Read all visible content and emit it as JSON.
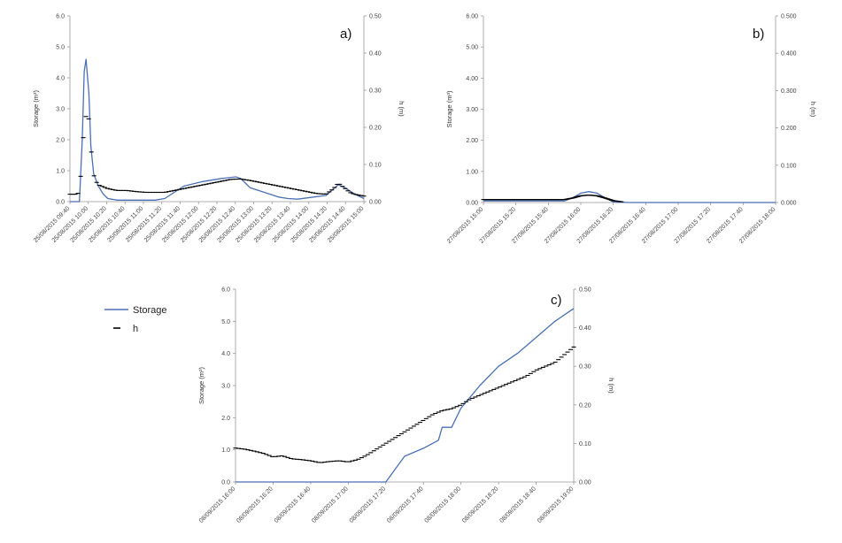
{
  "colors": {
    "storage": "#4a6fb5",
    "h": "#000000",
    "axis": "#999999"
  },
  "legend": {
    "storage_label": "Storage",
    "h_label": "h"
  },
  "chart_data": [
    {
      "type": "line",
      "panel_label": "a)",
      "ylabel": "Storage (m³)",
      "y2label": "h (m)",
      "ylim": [
        0,
        6
      ],
      "y2lim": [
        0,
        0.5
      ],
      "yticks": [
        "0.0",
        "1.0",
        "2.0",
        "3.0",
        "4.0",
        "5.0",
        "6.0"
      ],
      "y2ticks": [
        "0.00",
        "0.10",
        "0.20",
        "0.30",
        "0.40",
        "0.50"
      ],
      "xticks": [
        "25/08/2015 09:40",
        "25/08/2015 10:00",
        "25/08/2015 10:20",
        "25/08/2015 10:40",
        "25/08/2015 11:00",
        "25/08/2015 11:20",
        "25/08/2015 11:40",
        "25/08/2015 12:00",
        "25/08/2015 12:20",
        "25/08/2015 12:40",
        "25/08/2015 13:00",
        "25/08/2015 13:20",
        "25/08/2015 13:40",
        "25/08/2015 14:00",
        "25/08/2015 14:20",
        "25/08/2015 14:40",
        "25/08/2015 15:00"
      ],
      "x_minutes": [
        0,
        10,
        13,
        15,
        17,
        20,
        22,
        25,
        30,
        35,
        40,
        50,
        60,
        70,
        80,
        90,
        100,
        110,
        120,
        140,
        160,
        175,
        180,
        185,
        190,
        200,
        210,
        220,
        230,
        240,
        270,
        283,
        290,
        300,
        310
      ],
      "storage": [
        0,
        0,
        2.0,
        4.2,
        4.6,
        3.5,
        1.8,
        0.9,
        0.5,
        0.25,
        0.1,
        0.05,
        0.05,
        0.05,
        0.05,
        0.05,
        0.1,
        0.3,
        0.5,
        0.65,
        0.75,
        0.8,
        0.75,
        0.6,
        0.45,
        0.35,
        0.25,
        0.15,
        0.1,
        0.08,
        0.2,
        0.55,
        0.45,
        0.25,
        0.1
      ],
      "h_x_minutes": [
        0,
        8,
        10,
        12,
        14,
        16,
        18,
        20,
        22,
        24,
        26,
        30,
        35,
        40,
        50,
        60,
        70,
        80,
        90,
        100,
        110,
        120,
        130,
        140,
        150,
        160,
        170,
        180,
        190,
        200,
        210,
        220,
        230,
        240,
        250,
        260,
        270,
        278,
        283,
        288,
        295,
        300,
        310
      ],
      "h": [
        0.02,
        0.02,
        0.03,
        0.09,
        0.17,
        0.22,
        0.24,
        0.22,
        0.15,
        0.09,
        0.06,
        0.045,
        0.04,
        0.035,
        0.03,
        0.03,
        0.027,
        0.025,
        0.025,
        0.025,
        0.03,
        0.035,
        0.04,
        0.045,
        0.05,
        0.055,
        0.06,
        0.061,
        0.057,
        0.052,
        0.047,
        0.042,
        0.037,
        0.032,
        0.027,
        0.022,
        0.02,
        0.035,
        0.05,
        0.04,
        0.025,
        0.02,
        0.015
      ]
    },
    {
      "type": "line",
      "panel_label": "b)",
      "ylabel": "Storage (m³)",
      "y2label": "h (m)",
      "ylim": [
        0,
        6
      ],
      "y2lim": [
        0,
        0.5
      ],
      "yticks": [
        "0.00",
        "1.00",
        "2.00",
        "3.00",
        "4.00",
        "5.00",
        "6.00"
      ],
      "y2ticks": [
        "0.000",
        "0.100",
        "0.200",
        "0.300",
        "0.400",
        "0.500"
      ],
      "xticks": [
        "27/08/2015 15:00",
        "27/08/2015 15:20",
        "27/08/2015 15:40",
        "27/08/2015 16:00",
        "27/08/2015 16:20",
        "27/08/2015 16:40",
        "27/08/2015 17:00",
        "27/08/2015 17:20",
        "27/08/2015 17:40",
        "27/08/2015 18:00"
      ],
      "x_minutes": [
        0,
        10,
        20,
        30,
        40,
        50,
        55,
        60,
        65,
        70,
        75,
        80,
        90,
        120,
        180
      ],
      "storage": [
        0.05,
        0.05,
        0.05,
        0.05,
        0.05,
        0.05,
        0.15,
        0.3,
        0.35,
        0.3,
        0.15,
        0.02,
        0,
        0,
        0
      ],
      "h_x_minutes": [
        0,
        5,
        10,
        15,
        20,
        25,
        30,
        35,
        40,
        45,
        50,
        55,
        60,
        65,
        70,
        75,
        80,
        85
      ],
      "h": [
        0.008,
        0.008,
        0.008,
        0.008,
        0.008,
        0.008,
        0.008,
        0.008,
        0.008,
        0.008,
        0.008,
        0.012,
        0.018,
        0.02,
        0.018,
        0.012,
        0.005,
        0.002
      ]
    },
    {
      "type": "line",
      "panel_label": "c)",
      "ylabel": "Storage (m³)",
      "y2label": "h (m)",
      "ylim": [
        0,
        6
      ],
      "y2lim": [
        0,
        0.5
      ],
      "yticks": [
        "0.0",
        "1.0",
        "2.0",
        "3.0",
        "4.0",
        "5.0",
        "6.0"
      ],
      "y2ticks": [
        "0.00",
        "0.10",
        "0.20",
        "0.30",
        "0.40",
        "0.50"
      ],
      "xticks": [
        "08/09/2015 16:00",
        "08/09/2015 16:20",
        "08/09/2015 16:40",
        "08/09/2015 17:00",
        "08/09/2015 17:20",
        "08/09/2015 17:40",
        "08/09/2015 18:00",
        "08/09/2015 18:20",
        "08/09/2015 18:40",
        "08/09/2015 19:00"
      ],
      "x_minutes": [
        0,
        20,
        40,
        60,
        80,
        90,
        100,
        108,
        110,
        115,
        120,
        130,
        140,
        150,
        160,
        170,
        180
      ],
      "storage": [
        0,
        0,
        0,
        0,
        0,
        0.8,
        1.05,
        1.3,
        1.7,
        1.7,
        2.3,
        3.0,
        3.6,
        4.0,
        4.5,
        5.0,
        5.4
      ],
      "h_x_minutes": [
        0,
        5,
        10,
        15,
        20,
        25,
        30,
        35,
        40,
        45,
        50,
        55,
        60,
        65,
        70,
        75,
        80,
        85,
        90,
        95,
        100,
        105,
        110,
        115,
        120,
        125,
        130,
        135,
        140,
        145,
        150,
        155,
        160,
        165,
        170,
        175,
        180
      ],
      "h": [
        0.088,
        0.085,
        0.08,
        0.074,
        0.065,
        0.068,
        0.06,
        0.058,
        0.055,
        0.05,
        0.053,
        0.055,
        0.052,
        0.058,
        0.07,
        0.085,
        0.1,
        0.115,
        0.13,
        0.145,
        0.16,
        0.175,
        0.185,
        0.19,
        0.2,
        0.215,
        0.225,
        0.235,
        0.245,
        0.255,
        0.265,
        0.275,
        0.29,
        0.3,
        0.31,
        0.33,
        0.35
      ]
    }
  ]
}
